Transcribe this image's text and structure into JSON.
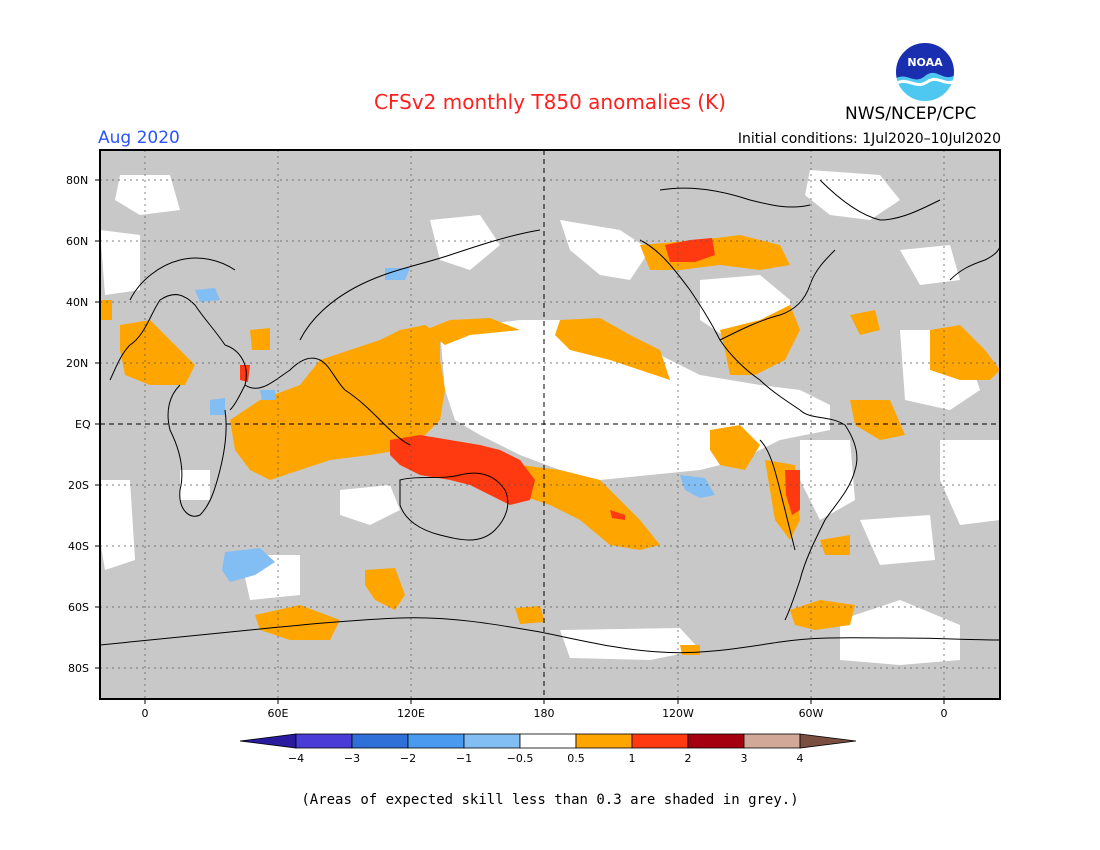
{
  "title": "CFSv2 monthly T850 anomalies (K)",
  "agency": "NWS/NCEP/CPC",
  "logo_text": "NOAA",
  "valid_month": "Aug 2020",
  "initial_conditions": "Initial conditions: 1Jul2020–10Jul2020",
  "lat_labels": [
    "80N",
    "60N",
    "40N",
    "20N",
    "EQ",
    "20S",
    "40S",
    "60S",
    "80S"
  ],
  "lon_labels": [
    "0",
    "60E",
    "120E",
    "180",
    "120W",
    "60W",
    "0"
  ],
  "colorbar": {
    "labels": [
      "−4",
      "−3",
      "−2",
      "−1",
      "−0.5",
      "0.5",
      "1",
      "2",
      "3",
      "4"
    ],
    "colors": [
      "#2a1a9e",
      "#4a3cd6",
      "#2e6fd8",
      "#4a9af0",
      "#82bdf3",
      "#ffffff",
      "#ffa500",
      "#ff3a10",
      "#a40010",
      "#d2a898",
      "#7a4e40"
    ]
  },
  "footnote": "(Areas of expected skill less than 0.3 are shaded in grey.)",
  "colors": {
    "no_skill_grey": "#c8c8c8",
    "neutral_white": "#ffffff",
    "positive_weak": "#ffa500",
    "positive_mid": "#ff3a10",
    "negative_weak": "#82bdf3",
    "title_red": "#ff2020",
    "month_blue": "#2a55ff"
  }
}
